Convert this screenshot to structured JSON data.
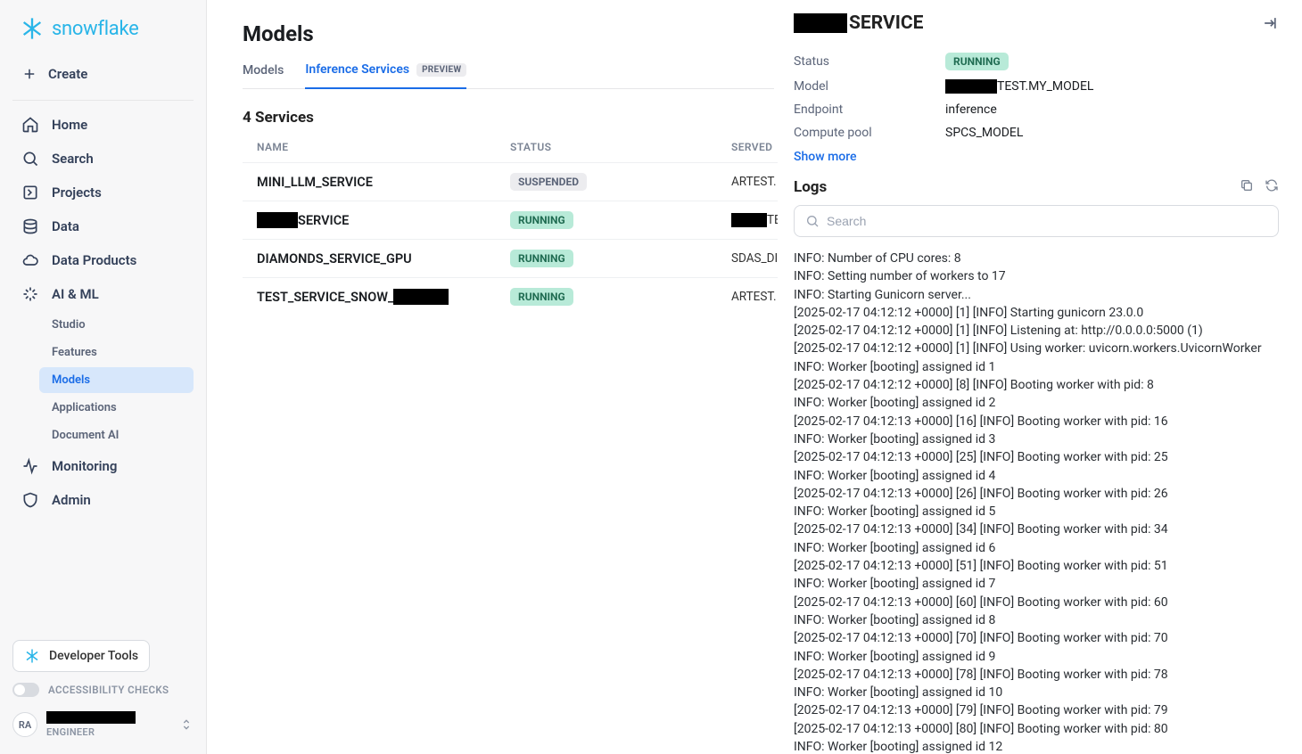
{
  "brand": "snowflake",
  "sidebar": {
    "create": "Create",
    "nav": {
      "home": "Home",
      "search": "Search",
      "projects": "Projects",
      "data": "Data",
      "data_products": "Data Products",
      "ai_ml": "AI & ML",
      "monitoring": "Monitoring",
      "admin": "Admin"
    },
    "ai_ml_sub": {
      "studio": "Studio",
      "features": "Features",
      "models": "Models",
      "applications": "Applications",
      "document_ai": "Document AI"
    },
    "devtools": "Developer Tools",
    "accessibility": "ACCESSIBILITY CHECKS",
    "avatar_initials": "RA",
    "user_role": "ENGINEER"
  },
  "main": {
    "title": "Models",
    "tabs": {
      "models": "Models",
      "inference": "Inference Services",
      "preview_badge": "PREVIEW"
    },
    "section": "4 Services",
    "columns": {
      "name": "NAME",
      "status": "STATUS",
      "served": "SERVED"
    },
    "rows": [
      {
        "name": "MINI_LLM_SERVICE",
        "status": "SUSPENDED",
        "status_class": "suspended",
        "served": "ARTEST.",
        "redact_pre": false
      },
      {
        "name": "SERVICE",
        "status": "RUNNING",
        "status_class": "running",
        "served": "TE",
        "redact_pre": true
      },
      {
        "name": "DIAMONDS_SERVICE_GPU",
        "status": "RUNNING",
        "status_class": "running",
        "served": "SDAS_DI",
        "redact_pre": false
      },
      {
        "name": "TEST_SERVICE_SNOW_",
        "status": "RUNNING",
        "status_class": "running",
        "served": "ARTEST.",
        "redact_pre": false,
        "redact_post": true
      }
    ]
  },
  "panel": {
    "title_suffix": "SERVICE",
    "fields": {
      "status_key": "Status",
      "status_val": "RUNNING",
      "model_key": "Model",
      "model_val": "TEST.MY_MODEL",
      "endpoint_key": "Endpoint",
      "endpoint_val": "inference",
      "pool_key": "Compute pool",
      "pool_val": "SPCS_MODEL"
    },
    "show_more": "Show more",
    "logs_title": "Logs",
    "search_placeholder": "Search",
    "logs": [
      "INFO: Number of CPU cores: 8",
      "INFO: Setting number of workers to 17",
      "INFO: Starting Gunicorn server...",
      "[2025-02-17 04:12:12 +0000] [1] [INFO] Starting gunicorn 23.0.0",
      "[2025-02-17 04:12:12 +0000] [1] [INFO] Listening at: http://0.0.0.0:5000 (1)",
      "[2025-02-17 04:12:12 +0000] [1] [INFO] Using worker: uvicorn.workers.UvicornWorker",
      "INFO: Worker [booting] assigned id 1",
      "[2025-02-17 04:12:12 +0000] [8] [INFO] Booting worker with pid: 8",
      "INFO: Worker [booting] assigned id 2",
      "[2025-02-17 04:12:13 +0000] [16] [INFO] Booting worker with pid: 16",
      "INFO: Worker [booting] assigned id 3",
      "[2025-02-17 04:12:13 +0000] [25] [INFO] Booting worker with pid: 25",
      "INFO: Worker [booting] assigned id 4",
      "[2025-02-17 04:12:13 +0000] [26] [INFO] Booting worker with pid: 26",
      "INFO: Worker [booting] assigned id 5",
      "[2025-02-17 04:12:13 +0000] [34] [INFO] Booting worker with pid: 34",
      "INFO: Worker [booting] assigned id 6",
      "[2025-02-17 04:12:13 +0000] [51] [INFO] Booting worker with pid: 51",
      "INFO: Worker [booting] assigned id 7",
      "[2025-02-17 04:12:13 +0000] [60] [INFO] Booting worker with pid: 60",
      "INFO: Worker [booting] assigned id 8",
      "[2025-02-17 04:12:13 +0000] [70] [INFO] Booting worker with pid: 70",
      "INFO: Worker [booting] assigned id 9",
      "[2025-02-17 04:12:13 +0000] [78] [INFO] Booting worker with pid: 78",
      "INFO: Worker [booting] assigned id 10",
      "[2025-02-17 04:12:13 +0000] [79] [INFO] Booting worker with pid: 79",
      "[2025-02-17 04:12:13 +0000] [80] [INFO] Booting worker with pid: 80",
      "INFO: Worker [booting] assigned id 12"
    ]
  }
}
